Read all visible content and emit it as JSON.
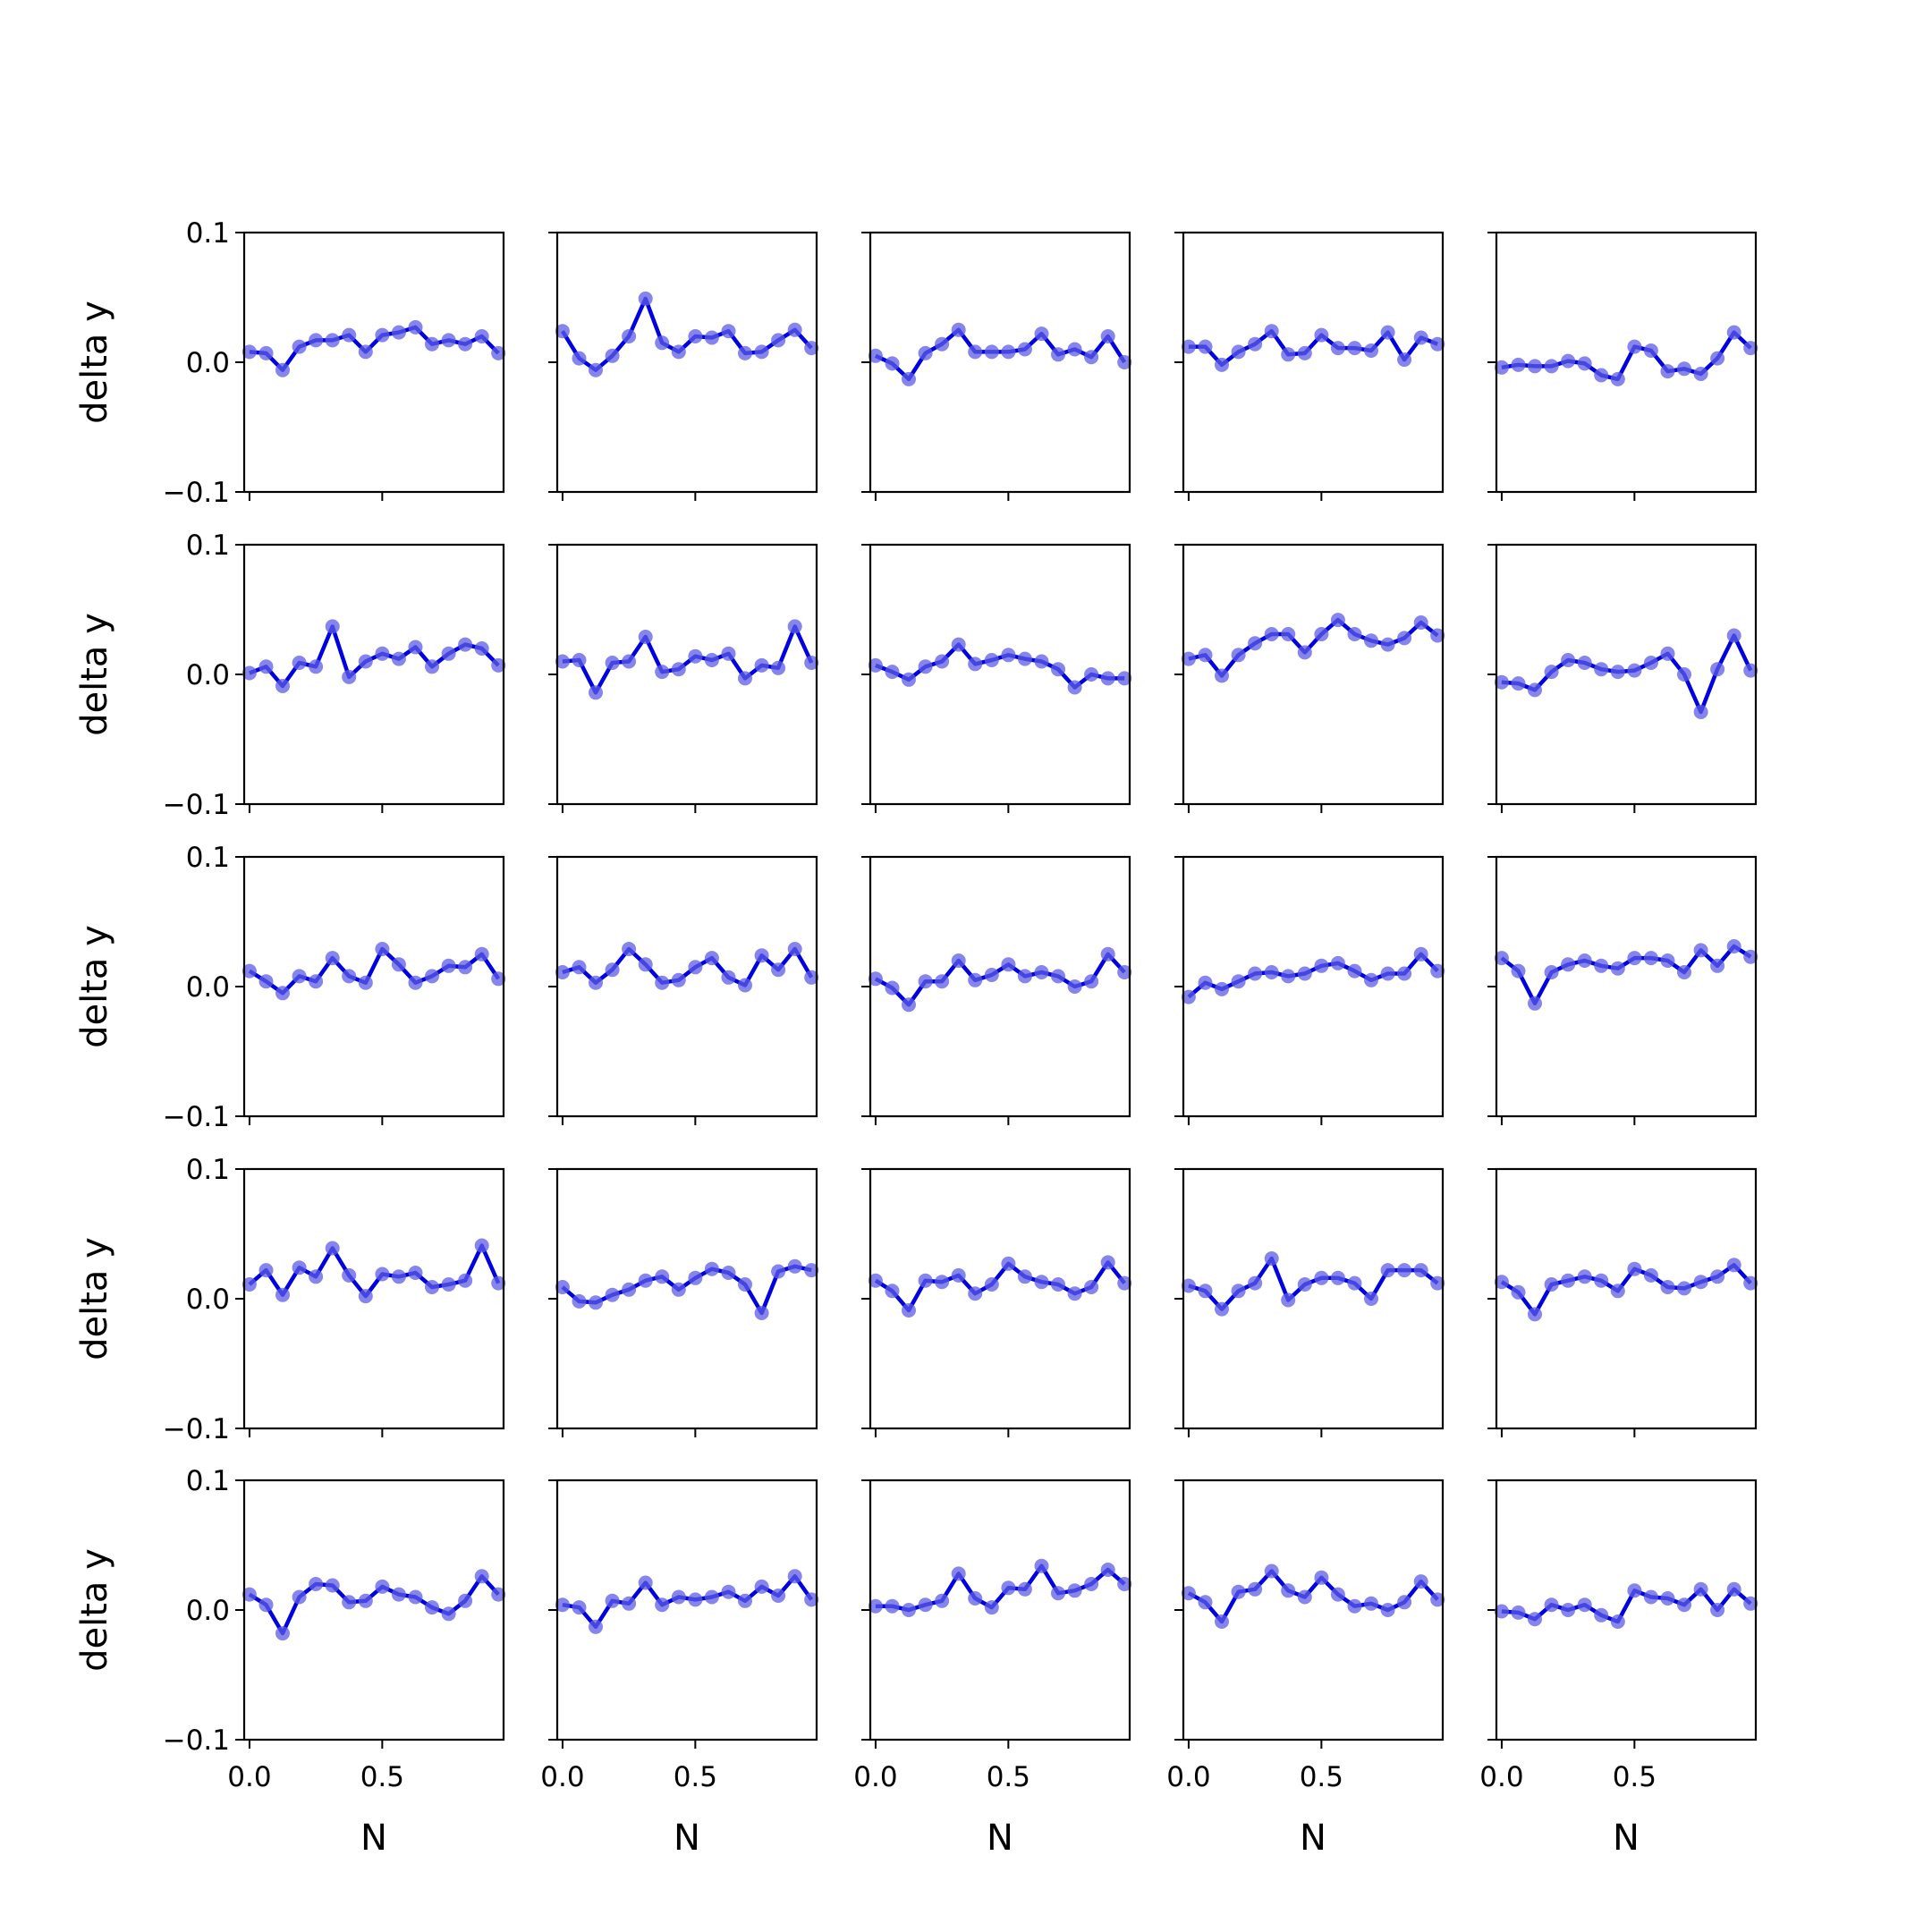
{
  "chart_data": {
    "type": "line",
    "layout": {
      "rows": 5,
      "cols": 5,
      "sharex": true,
      "sharey": true
    },
    "xlabel": "N",
    "ylabel": "delta y",
    "xlim": [
      -0.02,
      0.957
    ],
    "ylim": [
      -0.1,
      0.1
    ],
    "xticks": [
      0.0,
      0.5
    ],
    "xtick_labels": [
      "0.0",
      "0.5"
    ],
    "yticks": [
      -0.1,
      0.0,
      0.1
    ],
    "ytick_labels": [
      "−0.1",
      "0.0",
      "0.1"
    ],
    "line_color": "#0000e0",
    "marker_color": "#5c5ce6",
    "x": [
      0.0,
      0.0625,
      0.125,
      0.1875,
      0.25,
      0.3125,
      0.375,
      0.4375,
      0.5,
      0.5625,
      0.625,
      0.6875,
      0.75,
      0.8125,
      0.875,
      0.9375
    ],
    "panels": [
      [
        0.008,
        0.007,
        -0.006,
        0.012,
        0.017,
        0.017,
        0.021,
        0.008,
        0.021,
        0.023,
        0.027,
        0.014,
        0.017,
        0.014,
        0.02,
        0.007
      ],
      [
        0.024,
        0.003,
        -0.006,
        0.005,
        0.02,
        0.049,
        0.015,
        0.008,
        0.02,
        0.019,
        0.024,
        0.007,
        0.008,
        0.017,
        0.025,
        0.011
      ],
      [
        0.005,
        -0.001,
        -0.013,
        0.007,
        0.014,
        0.025,
        0.008,
        0.008,
        0.008,
        0.01,
        0.022,
        0.006,
        0.01,
        0.004,
        0.02,
        0.0
      ],
      [
        0.012,
        0.012,
        -0.002,
        0.008,
        0.014,
        0.024,
        0.006,
        0.007,
        0.021,
        0.011,
        0.011,
        0.009,
        0.023,
        0.002,
        0.019,
        0.014
      ],
      [
        -0.004,
        -0.002,
        -0.003,
        -0.003,
        0.001,
        -0.001,
        -0.01,
        -0.013,
        0.012,
        0.009,
        -0.007,
        -0.005,
        -0.009,
        0.003,
        0.023,
        0.011
      ],
      [
        0.001,
        0.006,
        -0.009,
        0.009,
        0.006,
        0.037,
        -0.002,
        0.01,
        0.016,
        0.012,
        0.021,
        0.006,
        0.016,
        0.023,
        0.02,
        0.007
      ],
      [
        0.01,
        0.011,
        -0.014,
        0.009,
        0.01,
        0.029,
        0.002,
        0.004,
        0.014,
        0.011,
        0.016,
        -0.003,
        0.007,
        0.005,
        0.037,
        0.009
      ],
      [
        0.007,
        0.002,
        -0.004,
        0.006,
        0.01,
        0.023,
        0.008,
        0.011,
        0.015,
        0.012,
        0.01,
        0.004,
        -0.01,
        0.0,
        -0.003,
        -0.003
      ],
      [
        0.012,
        0.015,
        -0.001,
        0.015,
        0.024,
        0.031,
        0.031,
        0.017,
        0.031,
        0.042,
        0.031,
        0.026,
        0.023,
        0.028,
        0.04,
        0.03
      ],
      [
        -0.006,
        -0.007,
        -0.012,
        0.002,
        0.011,
        0.009,
        0.004,
        0.002,
        0.003,
        0.009,
        0.016,
        0.0,
        -0.029,
        0.004,
        0.03,
        0.003
      ],
      [
        0.012,
        0.004,
        -0.005,
        0.008,
        0.004,
        0.022,
        0.008,
        0.003,
        0.029,
        0.017,
        0.003,
        0.008,
        0.016,
        0.015,
        0.025,
        0.006
      ],
      [
        0.011,
        0.015,
        0.003,
        0.013,
        0.029,
        0.017,
        0.003,
        0.005,
        0.015,
        0.022,
        0.007,
        0.001,
        0.024,
        0.013,
        0.029,
        0.007
      ],
      [
        0.006,
        -0.001,
        -0.014,
        0.004,
        0.004,
        0.02,
        0.005,
        0.009,
        0.017,
        0.008,
        0.011,
        0.008,
        0.0,
        0.004,
        0.025,
        0.011
      ],
      [
        -0.008,
        0.003,
        -0.002,
        0.004,
        0.01,
        0.011,
        0.008,
        0.01,
        0.016,
        0.018,
        0.012,
        0.005,
        0.01,
        0.01,
        0.025,
        0.012
      ],
      [
        0.022,
        0.012,
        -0.013,
        0.011,
        0.017,
        0.02,
        0.016,
        0.014,
        0.022,
        0.022,
        0.02,
        0.011,
        0.028,
        0.016,
        0.031,
        0.023
      ],
      [
        0.011,
        0.022,
        0.003,
        0.024,
        0.017,
        0.039,
        0.018,
        0.002,
        0.019,
        0.017,
        0.02,
        0.009,
        0.011,
        0.014,
        0.041,
        0.012
      ],
      [
        0.009,
        -0.002,
        -0.003,
        0.003,
        0.007,
        0.014,
        0.017,
        0.007,
        0.016,
        0.023,
        0.02,
        0.011,
        -0.011,
        0.021,
        0.025,
        0.022
      ],
      [
        0.014,
        0.006,
        -0.009,
        0.014,
        0.013,
        0.018,
        0.004,
        0.011,
        0.027,
        0.017,
        0.013,
        0.011,
        0.004,
        0.009,
        0.028,
        0.012
      ],
      [
        0.01,
        0.006,
        -0.008,
        0.006,
        0.012,
        0.031,
        -0.001,
        0.011,
        0.016,
        0.016,
        0.012,
        0.0,
        0.022,
        0.022,
        0.022,
        0.012
      ],
      [
        0.013,
        0.005,
        -0.012,
        0.011,
        0.014,
        0.017,
        0.014,
        0.006,
        0.023,
        0.018,
        0.009,
        0.008,
        0.013,
        0.017,
        0.026,
        0.012
      ],
      [
        0.012,
        0.004,
        -0.018,
        0.01,
        0.02,
        0.019,
        0.006,
        0.007,
        0.018,
        0.012,
        0.01,
        0.002,
        -0.003,
        0.007,
        0.026,
        0.012
      ],
      [
        0.004,
        0.002,
        -0.013,
        0.007,
        0.005,
        0.021,
        0.004,
        0.01,
        0.008,
        0.01,
        0.014,
        0.007,
        0.018,
        0.011,
        0.026,
        0.008
      ],
      [
        0.003,
        0.003,
        0.0,
        0.004,
        0.007,
        0.028,
        0.009,
        0.002,
        0.017,
        0.016,
        0.034,
        0.013,
        0.015,
        0.02,
        0.031,
        0.02
      ],
      [
        0.013,
        0.006,
        -0.009,
        0.014,
        0.016,
        0.03,
        0.015,
        0.01,
        0.025,
        0.012,
        0.003,
        0.005,
        0.0,
        0.006,
        0.022,
        0.008
      ],
      [
        -0.001,
        -0.002,
        -0.007,
        0.004,
        0.0,
        0.004,
        -0.004,
        -0.009,
        0.015,
        0.01,
        0.009,
        0.004,
        0.016,
        0.0,
        0.016,
        0.005
      ]
    ]
  }
}
